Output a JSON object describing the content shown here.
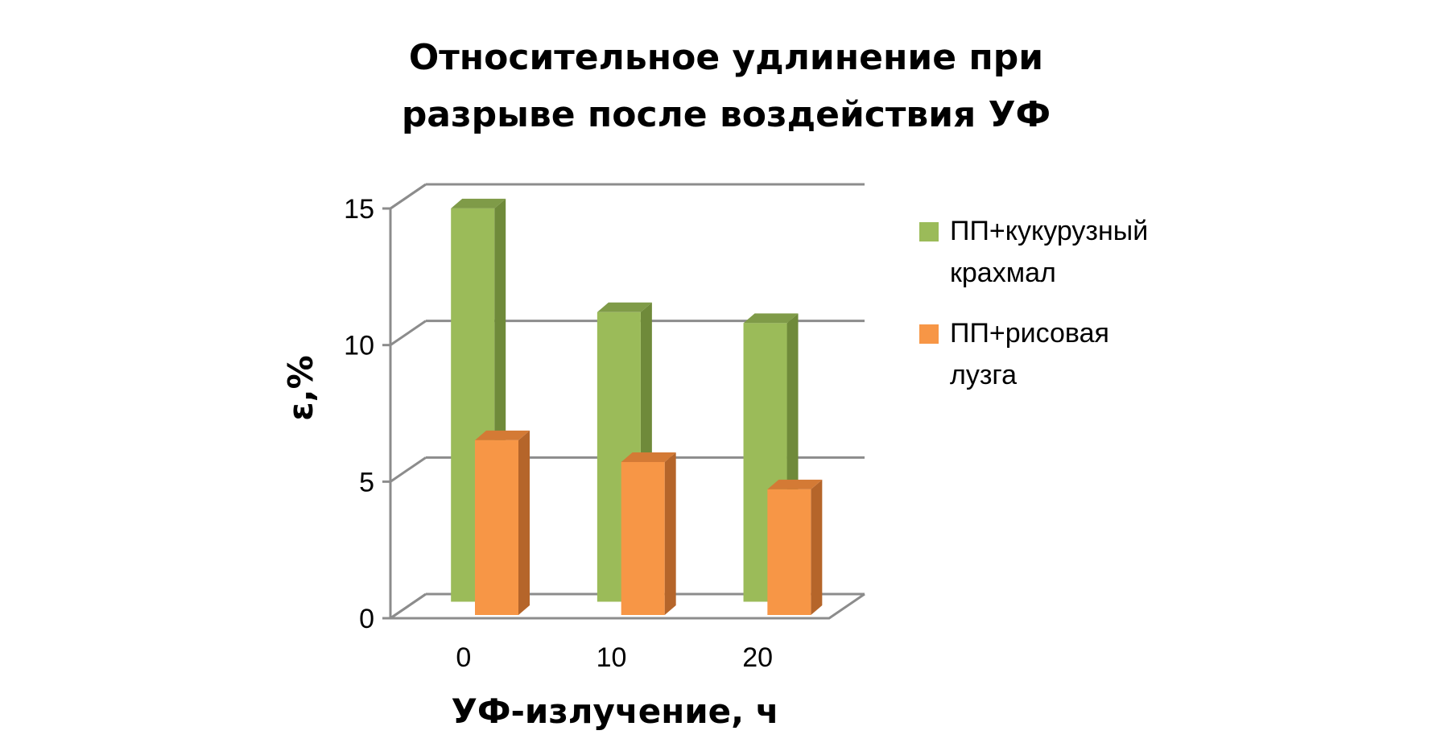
{
  "chart_data": {
    "type": "bar",
    "title": [
      "Относительное удлинение при",
      "разрыве после воздействия УФ"
    ],
    "xlabel": "УФ-излучение, ч",
    "ylabel": "ε,%",
    "categories": [
      "0",
      "10",
      "20"
    ],
    "y_ticks": [
      "0",
      "5",
      "10",
      "15"
    ],
    "ylim": [
      0,
      15
    ],
    "grid": true,
    "legend_position": "right",
    "series": [
      {
        "name": [
          "ПП+кукурузный",
          "крахмал"
        ],
        "values": [
          14.4,
          10.6,
          10.2
        ],
        "color": "#9bbb59",
        "side_color": "#6f8a3a",
        "top_color": "#7f9b48"
      },
      {
        "name": [
          "ПП+рисовая",
          "лузга"
        ],
        "values": [
          6.4,
          5.6,
          4.6
        ],
        "color": "#f79646",
        "side_color": "#b5652a",
        "top_color": "#d47a35"
      }
    ]
  }
}
